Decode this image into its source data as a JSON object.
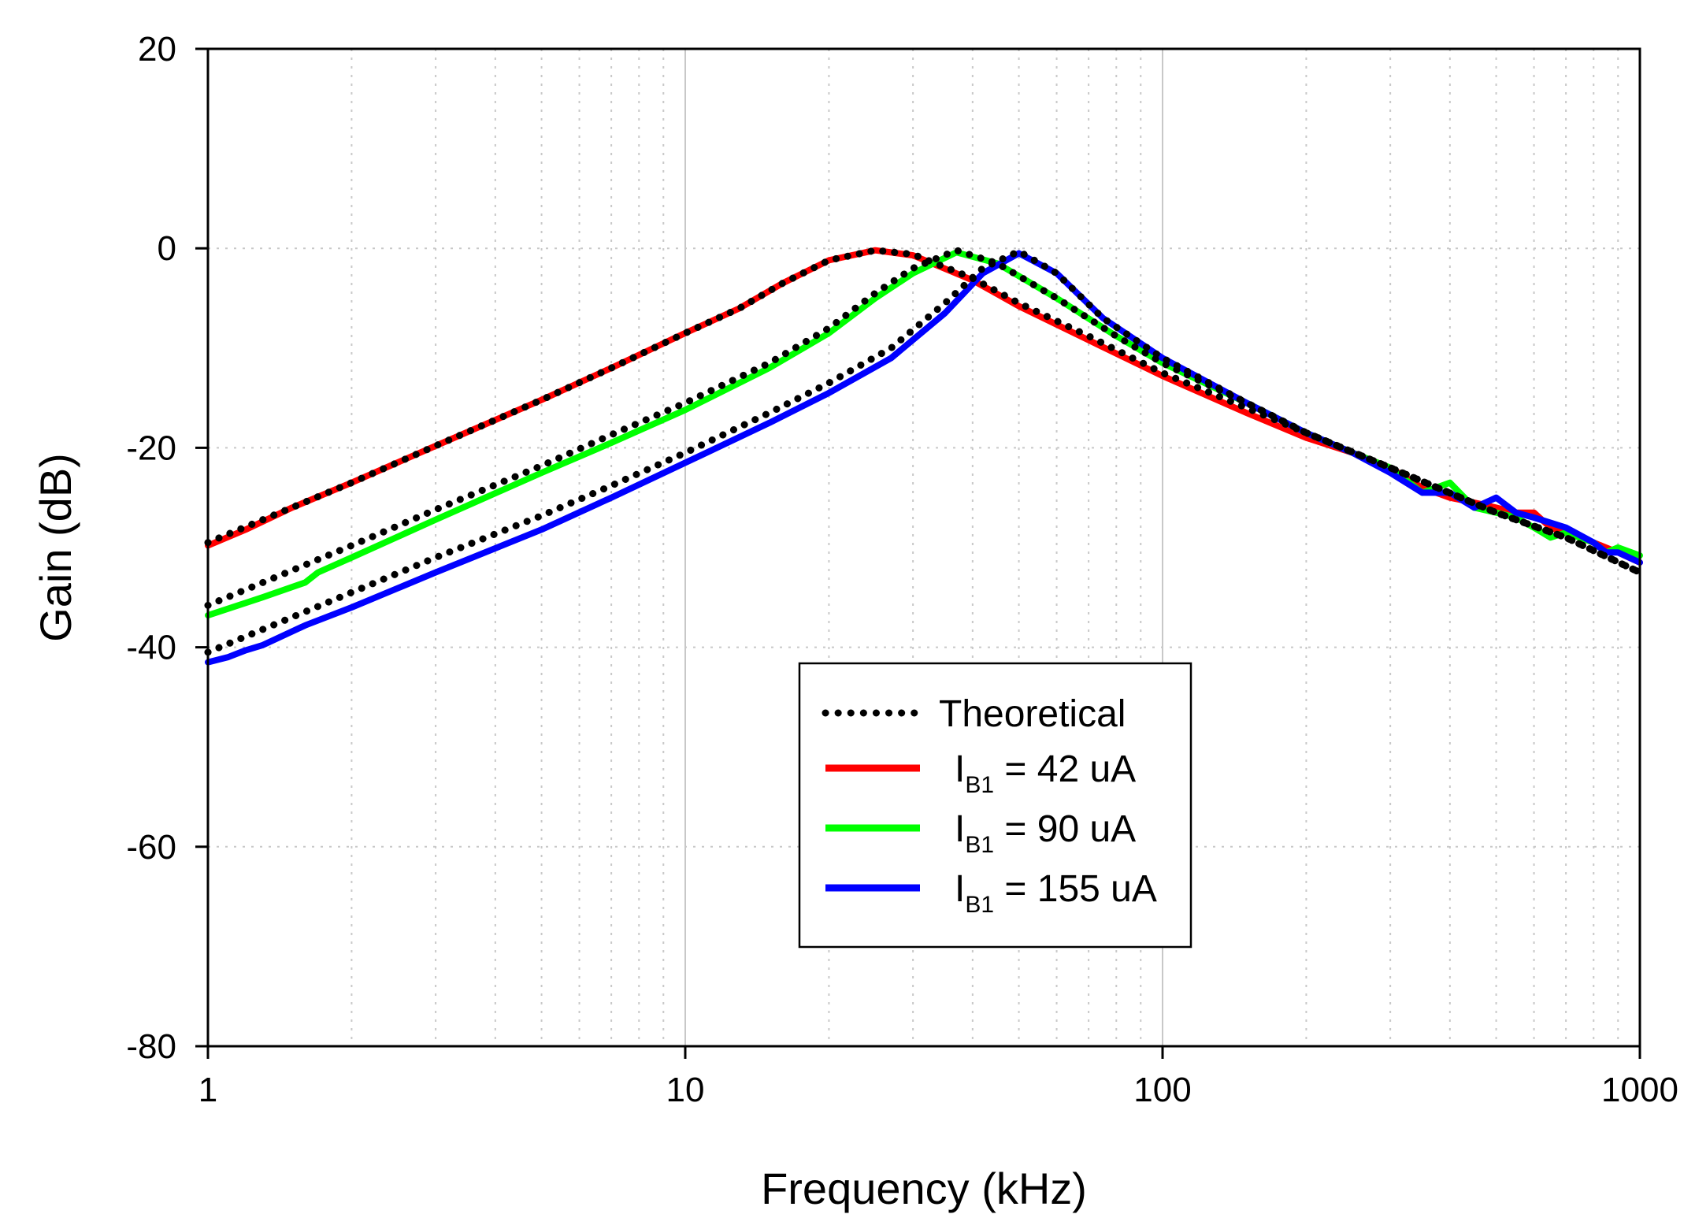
{
  "chart_data": {
    "type": "line",
    "title": "",
    "xlabel": "Frequency (kHz)",
    "ylabel": "Gain (dB)",
    "xscale": "log",
    "xlim": [
      1,
      1000
    ],
    "ylim": [
      -80,
      20
    ],
    "xticks": [
      1,
      10,
      100,
      1000
    ],
    "xtick_labels": [
      "1",
      "10",
      "100",
      "1000"
    ],
    "yticks": [
      -80,
      -60,
      -40,
      -20,
      0,
      20
    ],
    "ytick_labels": [
      "-80",
      "-60",
      "-40",
      "-20",
      "0",
      "20"
    ],
    "grid": true,
    "legend": {
      "placement": "center-bottom",
      "entries": [
        {
          "name": "Theoretical",
          "style": "dotted"
        },
        {
          "name_prefix": "I",
          "name_sub": "B1",
          "name_suffix": " = 42 uA"
        },
        {
          "name_prefix": "I",
          "name_sub": "B1",
          "name_suffix": " = 90 uA"
        },
        {
          "name_prefix": "I",
          "name_sub": "B1",
          "name_suffix": " = 155 uA"
        }
      ]
    },
    "series": [
      {
        "name": "Theoretical (f0 = 25 kHz)",
        "style": "dotted",
        "color": "#000000",
        "points": [
          [
            1,
            -29.5
          ],
          [
            2,
            -23.5
          ],
          [
            3,
            -19.8
          ],
          [
            5,
            -15.2
          ],
          [
            7,
            -12
          ],
          [
            10,
            -8.5
          ],
          [
            13,
            -6
          ],
          [
            16,
            -3.5
          ],
          [
            20,
            -1.2
          ],
          [
            25,
            -0.2
          ],
          [
            30,
            -0.6
          ],
          [
            40,
            -3
          ],
          [
            50,
            -5.5
          ],
          [
            70,
            -8.8
          ],
          [
            100,
            -12.5
          ],
          [
            150,
            -16
          ],
          [
            200,
            -18.5
          ],
          [
            300,
            -22
          ],
          [
            500,
            -26.5
          ],
          [
            700,
            -29
          ],
          [
            1000,
            -32.5
          ]
        ]
      },
      {
        "name": "Theoretical (f0 = 37 kHz)",
        "style": "dotted",
        "color": "#000000",
        "points": [
          [
            1,
            -35.8
          ],
          [
            2,
            -29.8
          ],
          [
            3,
            -26.2
          ],
          [
            5,
            -21.8
          ],
          [
            7,
            -18.7
          ],
          [
            10,
            -15.5
          ],
          [
            15,
            -11.5
          ],
          [
            20,
            -8
          ],
          [
            25,
            -4.5
          ],
          [
            30,
            -2
          ],
          [
            37,
            -0.2
          ],
          [
            45,
            -1.5
          ],
          [
            60,
            -5
          ],
          [
            80,
            -8.8
          ],
          [
            100,
            -11.5
          ],
          [
            150,
            -15.5
          ],
          [
            200,
            -18.5
          ],
          [
            300,
            -22
          ],
          [
            500,
            -26.5
          ],
          [
            700,
            -29
          ],
          [
            1000,
            -32.5
          ]
        ]
      },
      {
        "name": "Theoretical (f0 = 50 kHz)",
        "style": "dotted",
        "color": "#000000",
        "points": [
          [
            1,
            -40.5
          ],
          [
            2,
            -34.5
          ],
          [
            3,
            -31
          ],
          [
            5,
            -26.8
          ],
          [
            7,
            -23.8
          ],
          [
            10,
            -20.5
          ],
          [
            15,
            -16.5
          ],
          [
            20,
            -13.5
          ],
          [
            27,
            -10
          ],
          [
            35,
            -5.5
          ],
          [
            42,
            -2
          ],
          [
            50,
            -0.3
          ],
          [
            60,
            -2.5
          ],
          [
            75,
            -7
          ],
          [
            100,
            -11
          ],
          [
            150,
            -15.5
          ],
          [
            200,
            -18.5
          ],
          [
            300,
            -22
          ],
          [
            500,
            -26.5
          ],
          [
            700,
            -29
          ],
          [
            1000,
            -32.5
          ]
        ]
      },
      {
        "name": "IB1 = 42 uA",
        "style": "solid",
        "color": "#ff0000",
        "points": [
          [
            1,
            -29.8
          ],
          [
            1.2,
            -28.2
          ],
          [
            1.5,
            -26
          ],
          [
            2,
            -23.5
          ],
          [
            3,
            -19.8
          ],
          [
            5,
            -15.2
          ],
          [
            7,
            -12
          ],
          [
            10,
            -8.5
          ],
          [
            13,
            -6
          ],
          [
            16,
            -3.5
          ],
          [
            20,
            -1.2
          ],
          [
            25,
            -0.2
          ],
          [
            30,
            -0.7
          ],
          [
            40,
            -3.2
          ],
          [
            50,
            -5.8
          ],
          [
            70,
            -9.2
          ],
          [
            100,
            -12.8
          ],
          [
            150,
            -16.5
          ],
          [
            200,
            -19
          ],
          [
            250,
            -20.5
          ],
          [
            300,
            -22
          ],
          [
            350,
            -24
          ],
          [
            400,
            -25
          ],
          [
            450,
            -25.5
          ],
          [
            500,
            -26
          ],
          [
            550,
            -26.5
          ],
          [
            600,
            -26.5
          ],
          [
            650,
            -28
          ],
          [
            700,
            -28.5
          ],
          [
            800,
            -29.5
          ],
          [
            900,
            -30.5
          ],
          [
            1000,
            -31.5
          ]
        ]
      },
      {
        "name": "IB1 = 90 uA",
        "style": "solid",
        "color": "#00ff00",
        "points": [
          [
            1,
            -36.8
          ],
          [
            1.3,
            -35
          ],
          [
            1.6,
            -33.5
          ],
          [
            1.7,
            -32.5
          ],
          [
            2,
            -31
          ],
          [
            3,
            -27.2
          ],
          [
            5,
            -22.5
          ],
          [
            7,
            -19.5
          ],
          [
            10,
            -16.2
          ],
          [
            15,
            -12
          ],
          [
            20,
            -8.5
          ],
          [
            25,
            -5
          ],
          [
            30,
            -2.5
          ],
          [
            37,
            -0.4
          ],
          [
            45,
            -1.5
          ],
          [
            60,
            -5
          ],
          [
            80,
            -8.8
          ],
          [
            100,
            -11.5
          ],
          [
            150,
            -15.5
          ],
          [
            200,
            -18.5
          ],
          [
            250,
            -20.5
          ],
          [
            300,
            -22
          ],
          [
            350,
            -24.5
          ],
          [
            400,
            -23.5
          ],
          [
            450,
            -26
          ],
          [
            500,
            -26.5
          ],
          [
            550,
            -27
          ],
          [
            600,
            -28
          ],
          [
            650,
            -29
          ],
          [
            700,
            -28.5
          ],
          [
            800,
            -29.5
          ],
          [
            850,
            -30.5
          ],
          [
            900,
            -30
          ],
          [
            1000,
            -30.8
          ]
        ]
      },
      {
        "name": "IB1 = 155 uA",
        "style": "solid",
        "color": "#0000ff",
        "points": [
          [
            1,
            -41.5
          ],
          [
            1.1,
            -41
          ],
          [
            1.2,
            -40.3
          ],
          [
            1.3,
            -39.8
          ],
          [
            1.6,
            -37.8
          ],
          [
            2,
            -36
          ],
          [
            3,
            -32.5
          ],
          [
            5,
            -28.2
          ],
          [
            7,
            -25
          ],
          [
            10,
            -21.5
          ],
          [
            15,
            -17.5
          ],
          [
            20,
            -14.5
          ],
          [
            27,
            -11
          ],
          [
            35,
            -6.5
          ],
          [
            42,
            -2.5
          ],
          [
            50,
            -0.5
          ],
          [
            60,
            -2.5
          ],
          [
            75,
            -7
          ],
          [
            100,
            -11
          ],
          [
            150,
            -15.5
          ],
          [
            200,
            -18.5
          ],
          [
            250,
            -20.5
          ],
          [
            300,
            -22.5
          ],
          [
            350,
            -24.5
          ],
          [
            400,
            -24.5
          ],
          [
            450,
            -26
          ],
          [
            500,
            -25
          ],
          [
            550,
            -26.5
          ],
          [
            600,
            -27
          ],
          [
            700,
            -28
          ],
          [
            800,
            -29.5
          ],
          [
            850,
            -30.5
          ],
          [
            900,
            -30.5
          ],
          [
            1000,
            -31.5
          ]
        ]
      }
    ]
  }
}
